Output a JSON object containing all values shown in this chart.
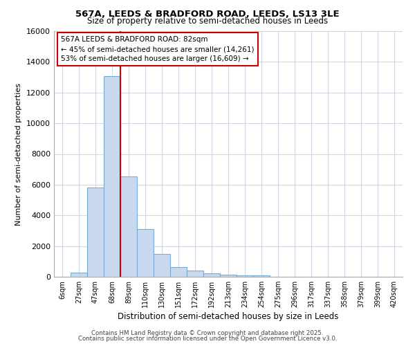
{
  "title1": "567A, LEEDS & BRADFORD ROAD, LEEDS, LS13 3LE",
  "title2": "Size of property relative to semi-detached houses in Leeds",
  "xlabel": "Distribution of semi-detached houses by size in Leeds",
  "ylabel": "Number of semi-detached properties",
  "bar_labels": [
    "6sqm",
    "27sqm",
    "47sqm",
    "68sqm",
    "89sqm",
    "110sqm",
    "130sqm",
    "151sqm",
    "172sqm",
    "192sqm",
    "213sqm",
    "234sqm",
    "254sqm",
    "275sqm",
    "296sqm",
    "317sqm",
    "337sqm",
    "358sqm",
    "379sqm",
    "399sqm",
    "420sqm"
  ],
  "bar_values": [
    0,
    290,
    5800,
    13050,
    6550,
    3100,
    1480,
    640,
    420,
    215,
    130,
    100,
    70,
    0,
    0,
    0,
    0,
    0,
    0,
    0,
    0
  ],
  "bar_color": "#c8d8ee",
  "bar_edge_color": "#7aabcf",
  "vline_x": 4,
  "vline_color": "#cc0000",
  "annotation_box_text": "567A LEEDS & BRADFORD ROAD: 82sqm\n← 45% of semi-detached houses are smaller (14,261)\n53% of semi-detached houses are larger (16,609) →",
  "annotation_box_color": "#cc0000",
  "ylim": [
    0,
    16000
  ],
  "yticks": [
    0,
    2000,
    4000,
    6000,
    8000,
    10000,
    12000,
    14000,
    16000
  ],
  "footer1": "Contains HM Land Registry data © Crown copyright and database right 2025.",
  "footer2": "Contains public sector information licensed under the Open Government Licence v3.0.",
  "bg_color": "#ffffff",
  "plot_bg_color": "#ffffff",
  "grid_color": "#d0d8e8"
}
